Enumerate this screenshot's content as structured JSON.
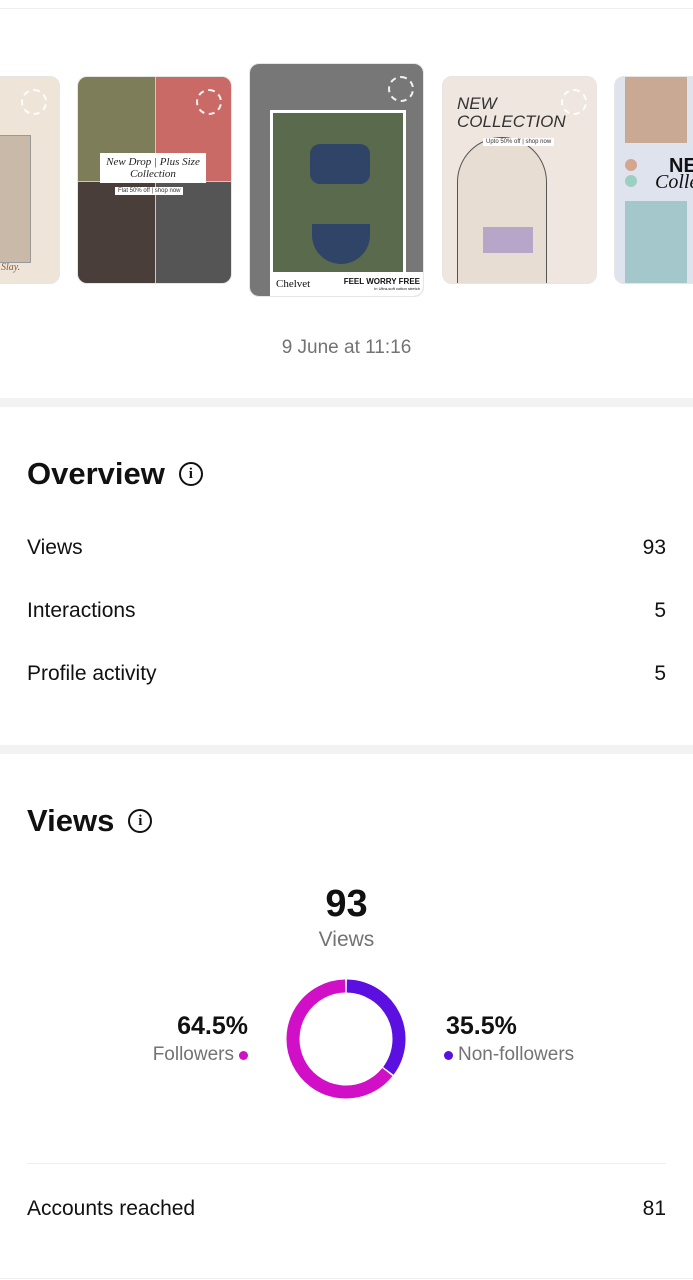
{
  "stories": [
    {
      "caption": "Slay.",
      "bg": "#efe4d8"
    },
    {
      "caption": "New Drop | Plus Size Collection",
      "promo": "Flat 50% off | shop now",
      "bg": "#cfc7b7"
    },
    {
      "brand": "Chelvet",
      "headline": "FEEL WORRY FREE",
      "sub": "in Ultra-soft cotton stretch",
      "bg": "#5a6a4c",
      "selected": true
    },
    {
      "headline": "NEW COLLECTION",
      "promo": "Upto 50% off | shop now",
      "bg": "#eee6df"
    },
    {
      "headline": "NE",
      "sub": "Colle",
      "bg": "#dfe3ee"
    }
  ],
  "date": "9 June at 11:16",
  "overview": {
    "title": "Overview",
    "rows": [
      {
        "label": "Views",
        "value": "93"
      },
      {
        "label": "Interactions",
        "value": "5"
      },
      {
        "label": "Profile activity",
        "value": "5"
      }
    ]
  },
  "views": {
    "title": "Views",
    "total": "93",
    "total_label": "Views",
    "chart_data": {
      "type": "pie",
      "series": [
        {
          "name": "Followers",
          "value": 64.5,
          "label": "64.5%",
          "color": "#d10fc6"
        },
        {
          "name": "Non-followers",
          "value": 35.5,
          "label": "35.5%",
          "color": "#5b0fe0"
        }
      ]
    },
    "accounts_reached": {
      "label": "Accounts reached",
      "value": "81"
    }
  }
}
